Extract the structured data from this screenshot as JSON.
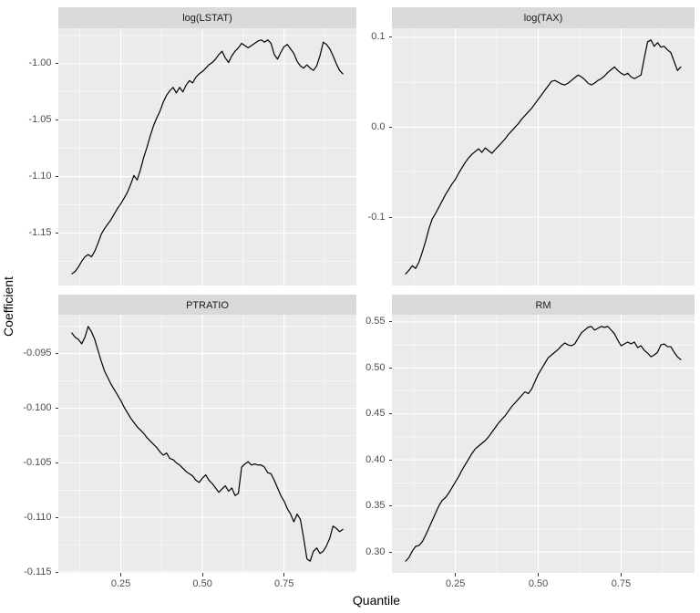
{
  "figure": {
    "x_axis_title": "Quantile",
    "y_axis_title": "Coefficient",
    "colors": {
      "background": "#ffffff",
      "panel_background": "#ebebeb",
      "strip_background": "#d9d9d9",
      "gridline": "#ffffff",
      "line": "#000000",
      "axis_text": "#4d4d4d",
      "strip_text": "#1a1a1a",
      "axis_title_text": "#000000"
    }
  },
  "chart_data": {
    "type": "line",
    "title": "",
    "xlabel": "Quantile",
    "ylabel": "Coefficient",
    "legend": "none",
    "grid": "major-and-minor-white-on-gray",
    "facet_layout": "2x2-free-y-scales",
    "xlim": [
      0.0585,
      0.9715
    ],
    "xticks": [
      0.25,
      0.5,
      0.75
    ],
    "xtick_labels": [
      "0.25",
      "0.50",
      "0.75"
    ],
    "x": [
      0.1,
      0.11,
      0.12,
      0.13,
      0.14,
      0.15,
      0.16,
      0.17,
      0.18,
      0.19,
      0.2,
      0.21,
      0.22,
      0.23,
      0.24,
      0.25,
      0.26,
      0.27,
      0.28,
      0.29,
      0.3,
      0.31,
      0.32,
      0.33,
      0.34,
      0.35,
      0.36,
      0.37,
      0.38,
      0.39,
      0.4,
      0.41,
      0.42,
      0.43,
      0.44,
      0.45,
      0.46,
      0.47,
      0.48,
      0.49,
      0.5,
      0.51,
      0.52,
      0.53,
      0.54,
      0.55,
      0.56,
      0.57,
      0.58,
      0.59,
      0.6,
      0.61,
      0.62,
      0.63,
      0.64,
      0.65,
      0.66,
      0.67,
      0.68,
      0.69,
      0.7,
      0.71,
      0.72,
      0.73,
      0.74,
      0.75,
      0.76,
      0.77,
      0.78,
      0.79,
      0.8,
      0.81,
      0.82,
      0.83,
      0.84,
      0.85,
      0.86,
      0.87,
      0.88,
      0.89,
      0.9,
      0.91,
      0.92,
      0.93
    ],
    "facets": [
      {
        "label": "log(LSTAT)",
        "ylim": [
          -1.1964,
          -0.9687
        ],
        "yticks": [
          -1.0,
          -1.05,
          -1.1,
          -1.15
        ],
        "ytick_labels": [
          "-1.00",
          "-1.05",
          "-1.10",
          "-1.15"
        ],
        "values": [
          -1.186,
          -1.184,
          -1.18,
          -1.175,
          -1.171,
          -1.169,
          -1.171,
          -1.166,
          -1.159,
          -1.151,
          -1.146,
          -1.142,
          -1.138,
          -1.133,
          -1.128,
          -1.124,
          -1.119,
          -1.114,
          -1.107,
          -1.099,
          -1.103,
          -1.094,
          -1.083,
          -1.074,
          -1.064,
          -1.055,
          -1.048,
          -1.042,
          -1.034,
          -1.028,
          -1.024,
          -1.021,
          -1.026,
          -1.021,
          -1.025,
          -1.019,
          -1.015,
          -1.017,
          -1.012,
          -1.009,
          -1.007,
          -1.004,
          -1.001,
          -0.999,
          -0.996,
          -0.992,
          -0.989,
          -0.995,
          -0.999,
          -0.993,
          -0.989,
          -0.986,
          -0.982,
          -0.984,
          -0.986,
          -0.984,
          -0.982,
          -0.98,
          -0.979,
          -0.981,
          -0.979,
          -0.982,
          -0.992,
          -0.996,
          -0.99,
          -0.985,
          -0.983,
          -0.987,
          -0.991,
          -0.998,
          -1.002,
          -1.004,
          -1.001,
          -1.004,
          -1.006,
          -1.002,
          -0.993,
          -0.981,
          -0.983,
          -0.987,
          -0.993,
          -1.0,
          -1.006,
          -1.009
        ]
      },
      {
        "label": "log(TAX)",
        "ylim": [
          -0.176,
          0.11
        ],
        "yticks": [
          0.1,
          0.0,
          -0.1
        ],
        "ytick_labels": [
          "0.1",
          "0.0",
          "-0.1"
        ],
        "values": [
          -0.163,
          -0.159,
          -0.154,
          -0.157,
          -0.15,
          -0.139,
          -0.127,
          -0.113,
          -0.102,
          -0.096,
          -0.089,
          -0.082,
          -0.075,
          -0.069,
          -0.063,
          -0.058,
          -0.051,
          -0.045,
          -0.039,
          -0.034,
          -0.03,
          -0.027,
          -0.024,
          -0.028,
          -0.023,
          -0.026,
          -0.029,
          -0.025,
          -0.021,
          -0.017,
          -0.013,
          -0.008,
          -0.004,
          0.0,
          0.004,
          0.009,
          0.013,
          0.017,
          0.021,
          0.026,
          0.031,
          0.036,
          0.041,
          0.046,
          0.051,
          0.052,
          0.05,
          0.048,
          0.047,
          0.049,
          0.052,
          0.055,
          0.058,
          0.056,
          0.053,
          0.049,
          0.047,
          0.049,
          0.052,
          0.054,
          0.057,
          0.061,
          0.064,
          0.067,
          0.063,
          0.06,
          0.058,
          0.06,
          0.056,
          0.054,
          0.056,
          0.058,
          0.077,
          0.095,
          0.097,
          0.09,
          0.094,
          0.089,
          0.09,
          0.086,
          0.083,
          0.073,
          0.063,
          0.067
        ]
      },
      {
        "label": "PTRATIO",
        "ylim": [
          -0.11508,
          -0.09143
        ],
        "yticks": [
          -0.095,
          -0.1,
          -0.105,
          -0.11,
          -0.115
        ],
        "ytick_labels": [
          "-0.095",
          "-0.100",
          "-0.105",
          "-0.110",
          "-0.115"
        ],
        "values": [
          -0.0931,
          -0.0935,
          -0.0937,
          -0.0941,
          -0.0935,
          -0.0925,
          -0.093,
          -0.0937,
          -0.0947,
          -0.0957,
          -0.0966,
          -0.0972,
          -0.0978,
          -0.0983,
          -0.0988,
          -0.0993,
          -0.0999,
          -0.1004,
          -0.1009,
          -0.1013,
          -0.1017,
          -0.102,
          -0.1023,
          -0.1027,
          -0.103,
          -0.1033,
          -0.1036,
          -0.104,
          -0.1043,
          -0.1041,
          -0.1046,
          -0.1047,
          -0.105,
          -0.1052,
          -0.1055,
          -0.1058,
          -0.106,
          -0.1062,
          -0.1066,
          -0.1068,
          -0.1064,
          -0.1061,
          -0.1066,
          -0.1069,
          -0.1073,
          -0.1077,
          -0.1074,
          -0.1071,
          -0.1076,
          -0.1073,
          -0.108,
          -0.1078,
          -0.1054,
          -0.1051,
          -0.1049,
          -0.1052,
          -0.1051,
          -0.1052,
          -0.1052,
          -0.1054,
          -0.1059,
          -0.106,
          -0.1066,
          -0.1073,
          -0.108,
          -0.1085,
          -0.1092,
          -0.1097,
          -0.1104,
          -0.1097,
          -0.1102,
          -0.1119,
          -0.1138,
          -0.114,
          -0.1131,
          -0.1128,
          -0.1133,
          -0.1131,
          -0.1126,
          -0.1119,
          -0.1108,
          -0.111,
          -0.1113,
          -0.1111
        ]
      },
      {
        "label": "RM",
        "ylim": [
          0.27725,
          0.55775
        ],
        "yticks": [
          0.55,
          0.5,
          0.45,
          0.4,
          0.35,
          0.3
        ],
        "ytick_labels": [
          "0.55",
          "0.50",
          "0.45",
          "0.40",
          "0.35",
          "0.30"
        ],
        "values": [
          0.29,
          0.294,
          0.301,
          0.306,
          0.307,
          0.311,
          0.318,
          0.326,
          0.334,
          0.342,
          0.35,
          0.356,
          0.359,
          0.364,
          0.37,
          0.376,
          0.382,
          0.389,
          0.395,
          0.401,
          0.407,
          0.412,
          0.415,
          0.418,
          0.421,
          0.425,
          0.43,
          0.435,
          0.44,
          0.444,
          0.448,
          0.453,
          0.458,
          0.462,
          0.466,
          0.47,
          0.474,
          0.472,
          0.477,
          0.485,
          0.493,
          0.499,
          0.505,
          0.511,
          0.514,
          0.517,
          0.52,
          0.524,
          0.527,
          0.525,
          0.524,
          0.526,
          0.532,
          0.538,
          0.541,
          0.544,
          0.545,
          0.541,
          0.543,
          0.545,
          0.544,
          0.545,
          0.541,
          0.537,
          0.53,
          0.524,
          0.526,
          0.528,
          0.526,
          0.528,
          0.522,
          0.524,
          0.519,
          0.516,
          0.512,
          0.514,
          0.517,
          0.525,
          0.526,
          0.523,
          0.523,
          0.517,
          0.512,
          0.509
        ]
      }
    ]
  }
}
